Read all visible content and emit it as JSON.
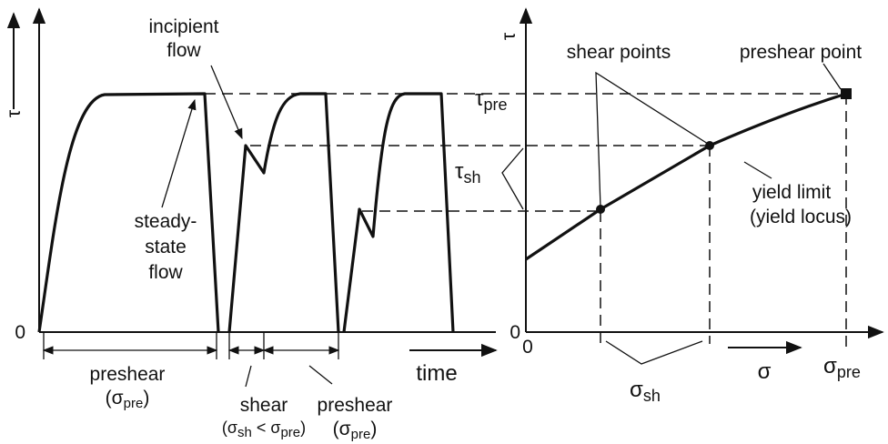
{
  "left": {
    "axis_label": "τ",
    "zero": "0",
    "time": "time",
    "incipient": [
      "incipient",
      "flow"
    ],
    "steady": [
      "steady-",
      "state",
      "flow"
    ],
    "preshear1": {
      "word": "preshear",
      "open": "(σ",
      "sub": "pre",
      "close": ")"
    },
    "shear": {
      "word": "shear",
      "open": "(σ",
      "sub1": "sh",
      "mid": " < σ",
      "sub2": "pre",
      "close": ")"
    },
    "preshear2": {
      "word": "preshear",
      "open": "(σ",
      "sub": "pre",
      "close": ")"
    }
  },
  "right": {
    "axis_label": "τ",
    "zero_y": "0",
    "zero_x": "0",
    "tau_pre": {
      "symbol": "τ",
      "sub": "pre"
    },
    "tau_sh": {
      "symbol": "τ",
      "sub": "sh"
    },
    "shear_points": "shear points",
    "preshear_point": "preshear point",
    "yield": [
      "yield limit",
      "(yield locus)"
    ],
    "sigma": "σ",
    "sigma_pre": {
      "symbol": "σ",
      "sub": "pre"
    },
    "sigma_sh": {
      "symbol": "σ",
      "sub": "sh"
    }
  }
}
